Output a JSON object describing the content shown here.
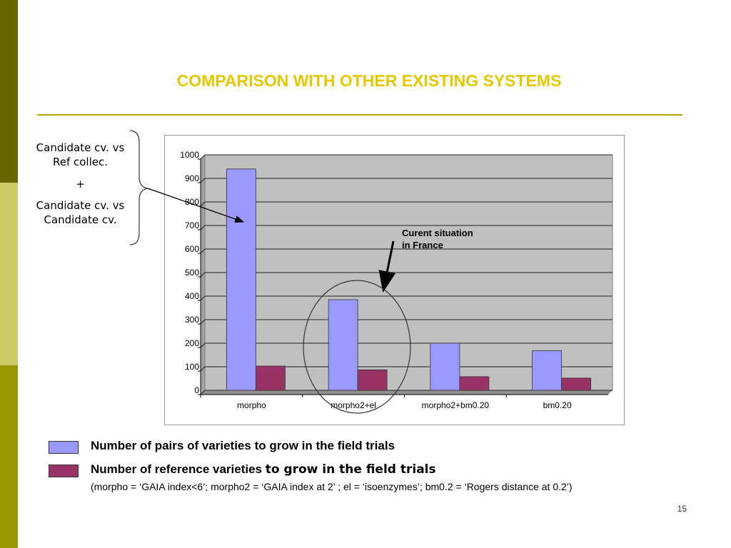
{
  "slide": {
    "title": "COMPARISON WITH OTHER EXISTING SYSTEMS",
    "page_number": "15",
    "colors": {
      "title": "#e6c800",
      "band_dark": "#666600",
      "band_light": "#cccc66",
      "band_mid": "#999900"
    }
  },
  "side_note": {
    "line1": "Candidate cv. vs",
    "line2": "Ref collec.",
    "plus": "+",
    "line3": "Candidate cv. vs",
    "line4": "Candidate cv."
  },
  "callout": {
    "text": "Curent situation\nin France"
  },
  "legend": {
    "item1": "Number of pairs of varieties to grow in the field trials",
    "item2_part1": "Number of reference varieties ",
    "item2_part2": "to grow in the field trials",
    "note": "(morpho = ‘GAIA index<6’; morpho2 = ‘GAIA index at 2’ ; el = ‘isoenzymes’; bm0.2 = ‘Rogers distance at 0.2’)"
  },
  "chart_data": {
    "type": "bar",
    "categories": [
      "morpho",
      "morpho2+el",
      "morpho2+bm0.20",
      "bm0.20"
    ],
    "series": [
      {
        "name": "Number of pairs of varieties to grow in the field trials",
        "values": [
          940,
          385,
          200,
          168
        ],
        "color": "#9999ff"
      },
      {
        "name": "Number of reference varieties to grow in the field trials",
        "values": [
          103,
          87,
          58,
          52
        ],
        "color": "#993366"
      }
    ],
    "ylim": [
      0,
      1000
    ],
    "yticks": [
      0,
      100,
      200,
      300,
      400,
      500,
      600,
      700,
      800,
      900,
      1000
    ],
    "grid": true,
    "plot_background": "#c0c0c0",
    "title": "",
    "xlabel": "",
    "ylabel": ""
  }
}
